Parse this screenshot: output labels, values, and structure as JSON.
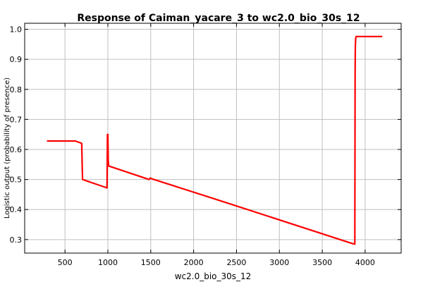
{
  "chart_data": {
    "type": "line",
    "title": "Response of Caiman_yacare_3 to wc2.0_bio_30s_12",
    "xlabel": "wc2.0_bio_30s_12",
    "ylabel": "Logistic output (probability of presence)",
    "xlim": [
      30,
      4420
    ],
    "ylim": [
      0.255,
      1.02
    ],
    "x_ticks": [
      500,
      1000,
      1500,
      2000,
      2500,
      3000,
      3500,
      4000
    ],
    "y_ticks": [
      0.3,
      0.4,
      0.5,
      0.6,
      0.7,
      0.8,
      0.9,
      1.0
    ],
    "x_tick_labels": [
      "500",
      "1000",
      "1500",
      "2000",
      "2500",
      "3000",
      "3500",
      "4000"
    ],
    "y_tick_labels": [
      "0.3",
      "0.4",
      "0.5",
      "0.6",
      "0.7",
      "0.8",
      "0.9",
      "1.0"
    ],
    "grid": true,
    "series": [
      {
        "color": "#ff0000",
        "x": [
          290,
          620,
          680,
          695,
          700,
          705,
          990,
          993,
          995,
          1000,
          1005,
          1010,
          1480,
          1495,
          1515,
          2250,
          3850,
          3875,
          3880,
          3883,
          3886,
          3890,
          3895,
          4200
        ],
        "y": [
          0.628,
          0.628,
          0.622,
          0.62,
          0.555,
          0.5,
          0.472,
          0.55,
          0.65,
          0.65,
          0.56,
          0.545,
          0.5,
          0.505,
          0.502,
          0.435,
          0.287,
          0.285,
          0.285,
          0.85,
          0.94,
          0.97,
          0.976,
          0.976
        ]
      }
    ]
  }
}
